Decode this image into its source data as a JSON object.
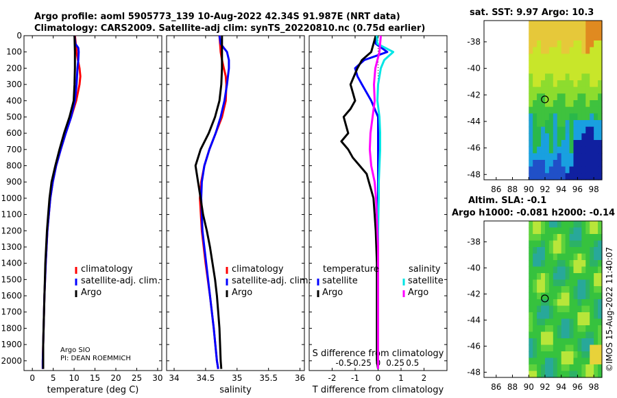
{
  "header": {
    "line1": "Argo profile: aoml 5905773_139 10-Aug-2022 42.34S 91.987E (NRT data)",
    "line2": "Climatology: CARS2009. Satellite-adj clim: synTS_20220810.nc (0.75d earlier)"
  },
  "colors": {
    "climatology": "#ff0000",
    "satellite": "#0000ff",
    "argo": "#000000",
    "sat_temp_diff": "#0000ff",
    "sal_sat": "#00e5e5",
    "sal_argo": "#ff00ff"
  },
  "chart_data": [
    {
      "type": "line",
      "name": "temperature-profile",
      "xlabel": "temperature (deg C)",
      "xlim": [
        -2,
        31
      ],
      "xticks": [
        0,
        5,
        10,
        15,
        20,
        25,
        30
      ],
      "ylim": [
        2060,
        0
      ],
      "yticks": [
        0,
        100,
        200,
        300,
        400,
        500,
        600,
        700,
        800,
        900,
        1000,
        1100,
        1200,
        1300,
        1400,
        1500,
        1600,
        1700,
        1800,
        1900,
        2000
      ],
      "legend": [
        "climatology",
        "satellite-adj. clim.",
        "Argo"
      ],
      "series": [
        {
          "name": "climatology",
          "depth": [
            0,
            50,
            100,
            150,
            200,
            250,
            300,
            400,
            500,
            600,
            700,
            800,
            900,
            1000,
            1200,
            1400,
            1600,
            1800,
            2000,
            2050
          ],
          "values": [
            10.2,
            10.4,
            10.6,
            10.9,
            11.3,
            11.5,
            11.3,
            10.5,
            9.3,
            8.0,
            6.8,
            5.7,
            4.9,
            4.3,
            3.6,
            3.2,
            2.9,
            2.7,
            2.5,
            2.5
          ]
        },
        {
          "name": "satellite-adj. clim.",
          "depth": [
            0,
            50,
            75,
            100,
            150,
            200,
            300,
            400,
            500,
            600,
            700,
            800,
            900,
            1000,
            1200,
            1400,
            1600,
            1800,
            2000,
            2050
          ],
          "values": [
            10.1,
            10.3,
            11.0,
            11.1,
            11.0,
            10.8,
            10.6,
            10.2,
            9.3,
            8.0,
            6.8,
            5.7,
            4.9,
            4.3,
            3.6,
            3.2,
            2.9,
            2.7,
            2.5,
            2.5
          ]
        },
        {
          "name": "Argo",
          "depth": [
            0,
            100,
            200,
            300,
            400,
            500,
            600,
            700,
            800,
            900,
            1000,
            1100,
            1200,
            1300,
            1400,
            1500,
            1600,
            1700,
            1800,
            1900,
            2000,
            2050
          ],
          "values": [
            10.1,
            10.2,
            10.2,
            10.1,
            9.9,
            8.9,
            7.6,
            6.5,
            5.5,
            4.6,
            4.1,
            3.8,
            3.5,
            3.3,
            3.1,
            3.0,
            2.9,
            2.8,
            2.7,
            2.6,
            2.6,
            2.6
          ]
        }
      ],
      "annotations": [
        "Argo SIO",
        "PI: DEAN ROEMMICH"
      ]
    },
    {
      "type": "line",
      "name": "salinity-profile",
      "xlabel": "salinity",
      "xlim": [
        33.88,
        36.07
      ],
      "xticks": [
        34,
        34.5,
        35,
        35.5,
        36
      ],
      "ylim": [
        2060,
        0
      ],
      "legend": [
        "climatology",
        "satellite-adj. clim.",
        "Argo"
      ],
      "series": [
        {
          "name": "climatology",
          "depth": [
            0,
            50,
            100,
            150,
            200,
            250,
            300,
            400,
            500,
            600,
            700,
            800,
            900,
            1000,
            1200,
            1400,
            1600,
            1800,
            2000,
            2050
          ],
          "values": [
            34.72,
            34.73,
            34.74,
            34.76,
            34.79,
            34.82,
            34.83,
            34.82,
            34.76,
            34.66,
            34.56,
            34.48,
            34.43,
            34.41,
            34.44,
            34.5,
            34.57,
            34.63,
            34.68,
            34.7
          ]
        },
        {
          "name": "satellite-adj. clim.",
          "depth": [
            0,
            50,
            75,
            100,
            150,
            200,
            300,
            400,
            500,
            600,
            700,
            800,
            900,
            1000,
            1200,
            1400,
            1600,
            1800,
            2000,
            2050
          ],
          "values": [
            34.72,
            34.74,
            34.79,
            34.84,
            34.87,
            34.87,
            34.84,
            34.8,
            34.74,
            34.66,
            34.56,
            34.48,
            34.44,
            34.43,
            34.45,
            34.51,
            34.57,
            34.63,
            34.68,
            34.7
          ]
        },
        {
          "name": "Argo",
          "depth": [
            0,
            100,
            200,
            300,
            400,
            500,
            600,
            700,
            800,
            900,
            1000,
            1100,
            1200,
            1300,
            1400,
            1500,
            1600,
            1700,
            1800,
            1900,
            2000,
            2050
          ],
          "values": [
            34.76,
            34.76,
            34.76,
            34.75,
            34.72,
            34.65,
            34.55,
            34.42,
            34.34,
            34.38,
            34.42,
            34.46,
            34.52,
            34.57,
            34.61,
            34.65,
            34.68,
            34.7,
            34.72,
            34.73,
            34.74,
            34.75
          ]
        }
      ]
    },
    {
      "type": "line",
      "name": "difference-profile",
      "xlabel": "T difference from climatology",
      "xlabel2": "S difference from climatology",
      "xlim": [
        -3,
        3
      ],
      "xticks": [
        -2,
        -1,
        0,
        1,
        2
      ],
      "xticks_labels": [
        "-2",
        "-1",
        "0",
        "1",
        "2"
      ],
      "s_ticks_labels": [
        "-0.5",
        "-0.25",
        "0",
        "0.25",
        "0.5"
      ],
      "ylim": [
        2060,
        0
      ],
      "legend_left_title": "temperature",
      "legend_right_title": "salinity",
      "legend_left": [
        "satellite",
        "Argo"
      ],
      "legend_right": [
        "satellite",
        "Argo"
      ],
      "series": [
        {
          "name": "T satellite",
          "depth": [
            0,
            50,
            100,
            150,
            200,
            250,
            300,
            400,
            500,
            600,
            700,
            800,
            1000,
            1500,
            2000,
            2050
          ],
          "values": [
            -0.1,
            -0.1,
            0.4,
            -0.6,
            -1.0,
            -0.9,
            -0.7,
            -0.3,
            0.0,
            0.0,
            0.0,
            0.0,
            0.0,
            0.0,
            0.0,
            0.0
          ]
        },
        {
          "name": "T Argo",
          "depth": [
            0,
            100,
            150,
            200,
            300,
            400,
            450,
            500,
            550,
            600,
            650,
            700,
            750,
            800,
            850,
            900,
            950,
            1000,
            1100,
            1200,
            1400,
            1600,
            1800,
            2000,
            2050
          ],
          "values": [
            -0.1,
            -0.3,
            -0.7,
            -0.9,
            -1.2,
            -1.0,
            -1.2,
            -1.5,
            -1.4,
            -1.3,
            -1.6,
            -1.3,
            -1.1,
            -0.8,
            -0.5,
            -0.4,
            -0.3,
            -0.2,
            -0.15,
            -0.1,
            -0.05,
            -0.05,
            -0.05,
            -0.05,
            0.0
          ]
        },
        {
          "name": "S satellite",
          "depth": [
            0,
            50,
            100,
            150,
            200,
            300,
            400,
            500,
            600,
            700,
            800,
            900,
            1000,
            1200,
            1400,
            1600,
            1800,
            2000,
            2050
          ],
          "values": [
            -0.02,
            -0.01,
            0.22,
            0.09,
            0.04,
            0.0,
            -0.01,
            0.02,
            0.03,
            0.03,
            0.02,
            0.01,
            0.01,
            0.0,
            0.0,
            0.0,
            0.0,
            0.0,
            0.0
          ]
        },
        {
          "name": "S Argo",
          "depth": [
            0,
            100,
            200,
            300,
            400,
            500,
            600,
            700,
            800,
            900,
            1000,
            1100,
            1200,
            1300,
            1400,
            1600,
            1800,
            2000,
            2050
          ],
          "values": [
            0.04,
            0.02,
            -0.04,
            -0.06,
            -0.05,
            -0.08,
            -0.11,
            -0.12,
            -0.1,
            -0.05,
            -0.03,
            -0.02,
            -0.01,
            0.0,
            0.0,
            0.0,
            0.0,
            0.0,
            0.0
          ]
        }
      ]
    },
    {
      "type": "heatmap",
      "name": "sst-map",
      "title": "sat. SST: 9.97 Argo: 10.3",
      "xlim": [
        84.5,
        99
      ],
      "ylim": [
        -48.4,
        -36.4
      ],
      "xticks": [
        86,
        88,
        90,
        92,
        94,
        96,
        98
      ],
      "yticks": [
        -38,
        -40,
        -42,
        -44,
        -46,
        -48
      ],
      "data_xrange": [
        90,
        99
      ],
      "argo_position": [
        91.987,
        -42.34
      ]
    },
    {
      "type": "heatmap",
      "name": "sla-map",
      "title": "Altim. SLA: -0.1",
      "title2": "Argo h1000: -0.081 h2000: -0.14",
      "xlim": [
        84.5,
        99
      ],
      "ylim": [
        -48.4,
        -36.4
      ],
      "xticks": [
        86,
        88,
        90,
        92,
        94,
        96,
        98
      ],
      "yticks": [
        -38,
        -40,
        -42,
        -44,
        -46,
        -48
      ],
      "data_xrange": [
        90,
        99
      ],
      "argo_position": [
        91.987,
        -42.34
      ]
    }
  ],
  "footer": {
    "vertical_text": "©IMOS 15-Aug-2022 11:40:07"
  }
}
